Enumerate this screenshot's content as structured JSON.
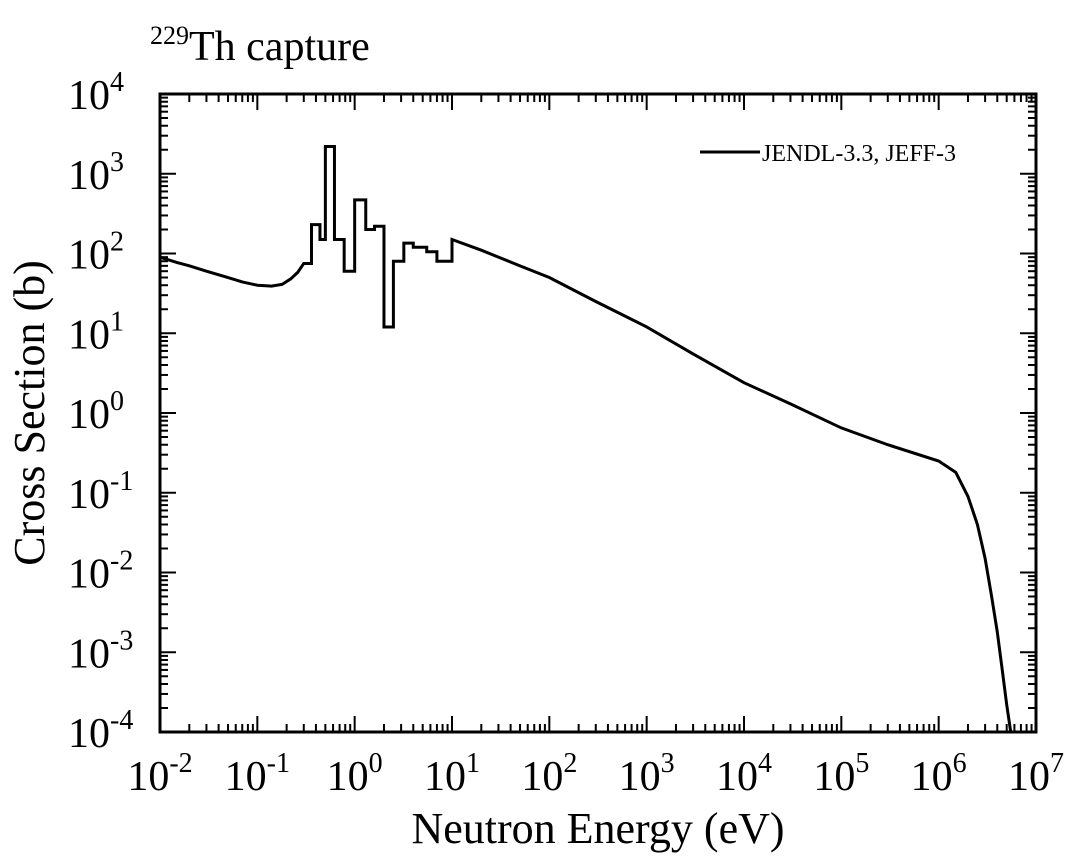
{
  "chart_data": {
    "type": "line",
    "title_prefix": "229",
    "title": "Th capture",
    "xlabel": "Neutron Energy (eV)",
    "ylabel": "Cross Section (b)",
    "x_scale": "log",
    "y_scale": "log",
    "xlim": [
      0.01,
      10000000
    ],
    "ylim": [
      0.0001,
      10000
    ],
    "x_ticks": [
      {
        "value": 0.01,
        "base": "10",
        "exp": "-2"
      },
      {
        "value": 0.1,
        "base": "10",
        "exp": "-1"
      },
      {
        "value": 1,
        "base": "10",
        "exp": "0"
      },
      {
        "value": 10,
        "base": "10",
        "exp": "1"
      },
      {
        "value": 100,
        "base": "10",
        "exp": "2"
      },
      {
        "value": 1000,
        "base": "10",
        "exp": "3"
      },
      {
        "value": 10000,
        "base": "10",
        "exp": "4"
      },
      {
        "value": 100000,
        "base": "10",
        "exp": "5"
      },
      {
        "value": 1000000,
        "base": "10",
        "exp": "6"
      },
      {
        "value": 10000000,
        "base": "10",
        "exp": "7"
      }
    ],
    "y_ticks": [
      {
        "value": 0.0001,
        "base": "10",
        "exp": "-4"
      },
      {
        "value": 0.001,
        "base": "10",
        "exp": "-3"
      },
      {
        "value": 0.01,
        "base": "10",
        "exp": "-2"
      },
      {
        "value": 0.1,
        "base": "10",
        "exp": "-1"
      },
      {
        "value": 1,
        "base": "10",
        "exp": "0"
      },
      {
        "value": 10,
        "base": "10",
        "exp": "1"
      },
      {
        "value": 100,
        "base": "10",
        "exp": "2"
      },
      {
        "value": 1000,
        "base": "10",
        "exp": "3"
      },
      {
        "value": 10000,
        "base": "10",
        "exp": "4"
      }
    ],
    "grid": false,
    "legend_position": "top-right",
    "series": [
      {
        "name": "JENDL-3.3, JEFF-3",
        "color": "#000000",
        "points": [
          [
            0.01,
            90
          ],
          [
            0.015,
            77
          ],
          [
            0.02,
            70
          ],
          [
            0.03,
            60
          ],
          [
            0.05,
            50
          ],
          [
            0.07,
            44
          ],
          [
            0.1,
            40
          ],
          [
            0.14,
            39
          ],
          [
            0.18,
            41
          ],
          [
            0.22,
            48
          ],
          [
            0.26,
            58
          ],
          [
            0.3,
            75
          ],
          [
            0.3,
            75
          ],
          [
            0.36,
            75
          ],
          [
            0.36,
            230
          ],
          [
            0.44,
            230
          ],
          [
            0.44,
            150
          ],
          [
            0.5,
            150
          ],
          [
            0.5,
            2200
          ],
          [
            0.62,
            2200
          ],
          [
            0.62,
            150
          ],
          [
            0.78,
            150
          ],
          [
            0.78,
            60
          ],
          [
            1.0,
            60
          ],
          [
            1.0,
            470
          ],
          [
            1.3,
            470
          ],
          [
            1.3,
            200
          ],
          [
            1.6,
            200
          ],
          [
            1.6,
            220
          ],
          [
            2.0,
            220
          ],
          [
            2.0,
            12
          ],
          [
            2.5,
            12
          ],
          [
            2.5,
            80
          ],
          [
            3.2,
            80
          ],
          [
            3.2,
            135
          ],
          [
            4.0,
            135
          ],
          [
            4.0,
            120
          ],
          [
            5.5,
            120
          ],
          [
            5.5,
            105
          ],
          [
            7.0,
            105
          ],
          [
            7.0,
            80
          ],
          [
            10.0,
            80
          ],
          [
            10.0,
            150
          ],
          [
            20,
            110
          ],
          [
            50,
            70
          ],
          [
            100,
            50
          ],
          [
            300,
            25
          ],
          [
            1000,
            12
          ],
          [
            3000,
            5.5
          ],
          [
            10000,
            2.4
          ],
          [
            30000,
            1.3
          ],
          [
            100000,
            0.65
          ],
          [
            300000,
            0.4
          ],
          [
            1000000,
            0.25
          ],
          [
            1500000,
            0.18
          ],
          [
            2000000,
            0.09
          ],
          [
            2500000,
            0.04
          ],
          [
            3000000,
            0.015
          ],
          [
            3500000,
            0.005
          ],
          [
            4000000,
            0.0018
          ],
          [
            4500000,
            0.0006
          ],
          [
            5000000,
            0.00022
          ],
          [
            5500000,
            0.0001
          ]
        ]
      }
    ]
  }
}
